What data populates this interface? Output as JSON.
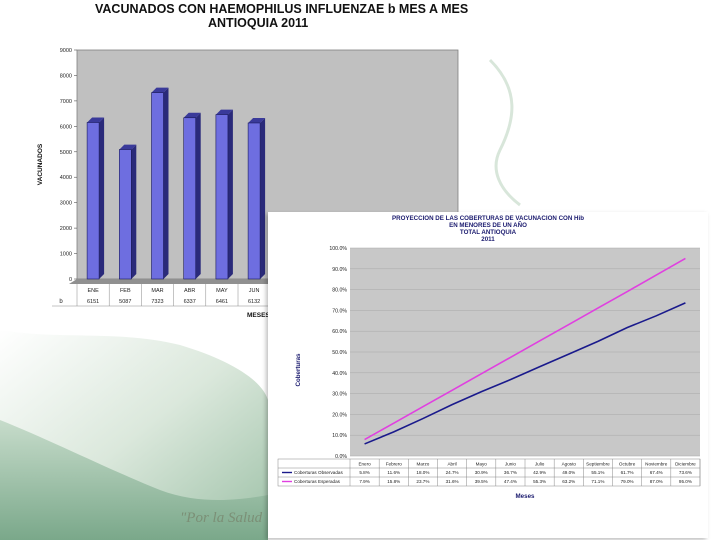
{
  "slogan": "\"Por la Salud",
  "chart_data": [
    {
      "type": "bar",
      "title": "VACUNADOS CON HAEMOPHILUS INFLUENZAE  b MES A MES",
      "subtitle": "ANTIOQUIA 2011",
      "ylabel": "VACUNADOS",
      "xlabel": "MESES",
      "ylim": [
        0,
        9000
      ],
      "yticks": [
        "0",
        "1000",
        "2000",
        "3000",
        "4000",
        "5000",
        "6000",
        "7000",
        "8000",
        "9000"
      ],
      "categories": [
        "ENE",
        "FEB",
        "MAR",
        "ABR",
        "MAY",
        "JUN"
      ],
      "values": [
        6151,
        5087,
        7323,
        6337,
        6461,
        6132
      ],
      "value_labels": [
        "6151",
        "5087",
        "7323",
        "6337",
        "6461",
        "6132"
      ],
      "table_row_label": "b",
      "bar_color": "#6e6ee0",
      "plot_background": "#c0c0c0"
    },
    {
      "type": "line",
      "title_lines": [
        "PROYECCION DE LAS COBERTURAS  DE VACUNACION  CON Hib",
        "EN MENORES DE UN AÑO",
        "TOTAL ANTIOQUIA",
        "2011"
      ],
      "ylabel": "Coberturas",
      "xlabel": "Meses",
      "ylim": [
        0,
        100
      ],
      "yticks": [
        "0.0%",
        "10.0%",
        "20.0%",
        "30.0%",
        "40.0%",
        "50.0%",
        "60.0%",
        "70.0%",
        "80.0%",
        "90.0%",
        "100.0%"
      ],
      "categories": [
        "Enero",
        "Febrero",
        "Marzo",
        "Abril",
        "Mayo",
        "Junio",
        "Julio",
        "Agosto",
        "Septiembre",
        "Octubre",
        "Noviembre",
        "Diciembre"
      ],
      "series": [
        {
          "name": "Coberturas  Observadas",
          "color": "#1a1a8c",
          "values": [
            5.8,
            11.6,
            18.0,
            24.7,
            30.9,
            36.7,
            42.9,
            49.0,
            55.1,
            61.7,
            67.4,
            73.6
          ],
          "labels": [
            "5.8%",
            "11.6%",
            "18.0%",
            "24.7%",
            "30.9%",
            "36.7%",
            "42.9%",
            "49.0%",
            "55.1%",
            "61.7%",
            "67.4%",
            "73.6%"
          ]
        },
        {
          "name": "Coberturas  Esperadas",
          "color": "#e040e0",
          "values": [
            7.9,
            15.8,
            23.7,
            31.6,
            39.5,
            47.4,
            55.3,
            63.2,
            71.1,
            79.0,
            87.0,
            95.0
          ],
          "labels": [
            "7.9%",
            "15.8%",
            "23.7%",
            "31.6%",
            "39.5%",
            "47.4%",
            "55.3%",
            "63.2%",
            "71.1%",
            "79.0%",
            "87.0%",
            "95.0%"
          ]
        }
      ]
    }
  ]
}
